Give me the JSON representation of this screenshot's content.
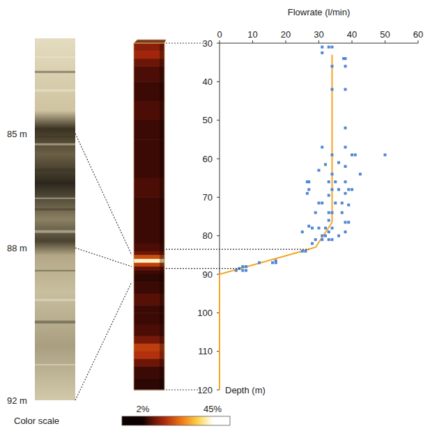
{
  "chart_data": {
    "type": "scatter",
    "x_label": "Flowrate (l/min)",
    "y_label": "Depth (m)",
    "xlim": [
      0,
      60
    ],
    "ylim": [
      30,
      120
    ],
    "xticks": [
      0,
      10,
      20,
      30,
      40,
      50,
      60
    ],
    "yticks": [
      30,
      40,
      50,
      60,
      70,
      80,
      90,
      100,
      110,
      120
    ],
    "series": [
      {
        "type": "scatter",
        "color": "#4f86d6",
        "marker": "square",
        "x": [
          31,
          33,
          34,
          31,
          38,
          37.5,
          34,
          38,
          34,
          38,
          38,
          38,
          31,
          34,
          40,
          41,
          50,
          32,
          36,
          38,
          42.5,
          34,
          30,
          27,
          26.5,
          33,
          35,
          38,
          34,
          36,
          39,
          40,
          38,
          27,
          26.5,
          33,
          30,
          31,
          35,
          37,
          39,
          29,
          33,
          34,
          37,
          33,
          38,
          39,
          34,
          27,
          28,
          30,
          32,
          33,
          25,
          31,
          32,
          36,
          38,
          29,
          31,
          33,
          34,
          28,
          25,
          26,
          12,
          16,
          17,
          17,
          7,
          8,
          6,
          7,
          8,
          5
        ],
        "values": [
          31,
          31,
          31,
          32.5,
          34,
          34,
          36,
          36,
          42,
          42,
          52,
          57,
          57,
          59,
          59,
          59,
          59,
          61.5,
          61,
          62,
          64,
          64,
          63,
          66,
          66,
          66,
          66,
          66,
          68,
          68,
          68,
          68,
          69,
          68,
          69,
          69.5,
          71.5,
          71.5,
          71.5,
          71.5,
          72,
          74,
          74,
          74,
          74,
          76,
          76.5,
          76.5,
          78,
          77.5,
          78,
          78,
          78,
          79,
          79,
          80,
          80,
          80,
          79,
          81,
          81,
          81,
          81,
          82,
          84,
          84,
          87,
          87,
          87,
          86.5,
          88,
          88,
          88.5,
          89,
          89,
          89
        ]
      },
      {
        "type": "line",
        "color": "#f5a623",
        "line_style": "solid",
        "x": [
          34,
          34,
          29,
          25,
          0,
          0
        ],
        "values": [
          33,
          76.5,
          83,
          84,
          90,
          120
        ]
      }
    ],
    "highlight_depths": [
      83.5,
      88.5
    ],
    "column": {
      "depth_edges": [
        30,
        32,
        34,
        36,
        40,
        45,
        50,
        55,
        60,
        65,
        70,
        75,
        80,
        82,
        84,
        85,
        86,
        87,
        88,
        89,
        90,
        92,
        95,
        98,
        100,
        103,
        106,
        108,
        110,
        112,
        114,
        117,
        120
      ],
      "values": [
        12,
        14,
        9,
        6,
        5,
        6,
        5,
        5,
        5,
        6,
        5,
        5,
        5,
        6,
        9,
        20,
        42,
        18,
        8,
        5,
        4,
        5,
        7,
        5,
        5,
        6,
        10,
        18,
        16,
        9,
        5,
        4
      ]
    },
    "color_scale": {
      "title": "Color scale",
      "range": [
        2,
        45
      ],
      "ticks": [
        {
          "value": 2,
          "label": "2%"
        },
        {
          "value": 45,
          "label": "45%"
        }
      ]
    },
    "core": {
      "range": [
        82.5,
        92
      ],
      "labels": [
        {
          "depth": 85,
          "label": "85 m"
        },
        {
          "depth": 88,
          "label": "88 m"
        },
        {
          "depth": 92,
          "label": "92 m"
        }
      ]
    }
  }
}
